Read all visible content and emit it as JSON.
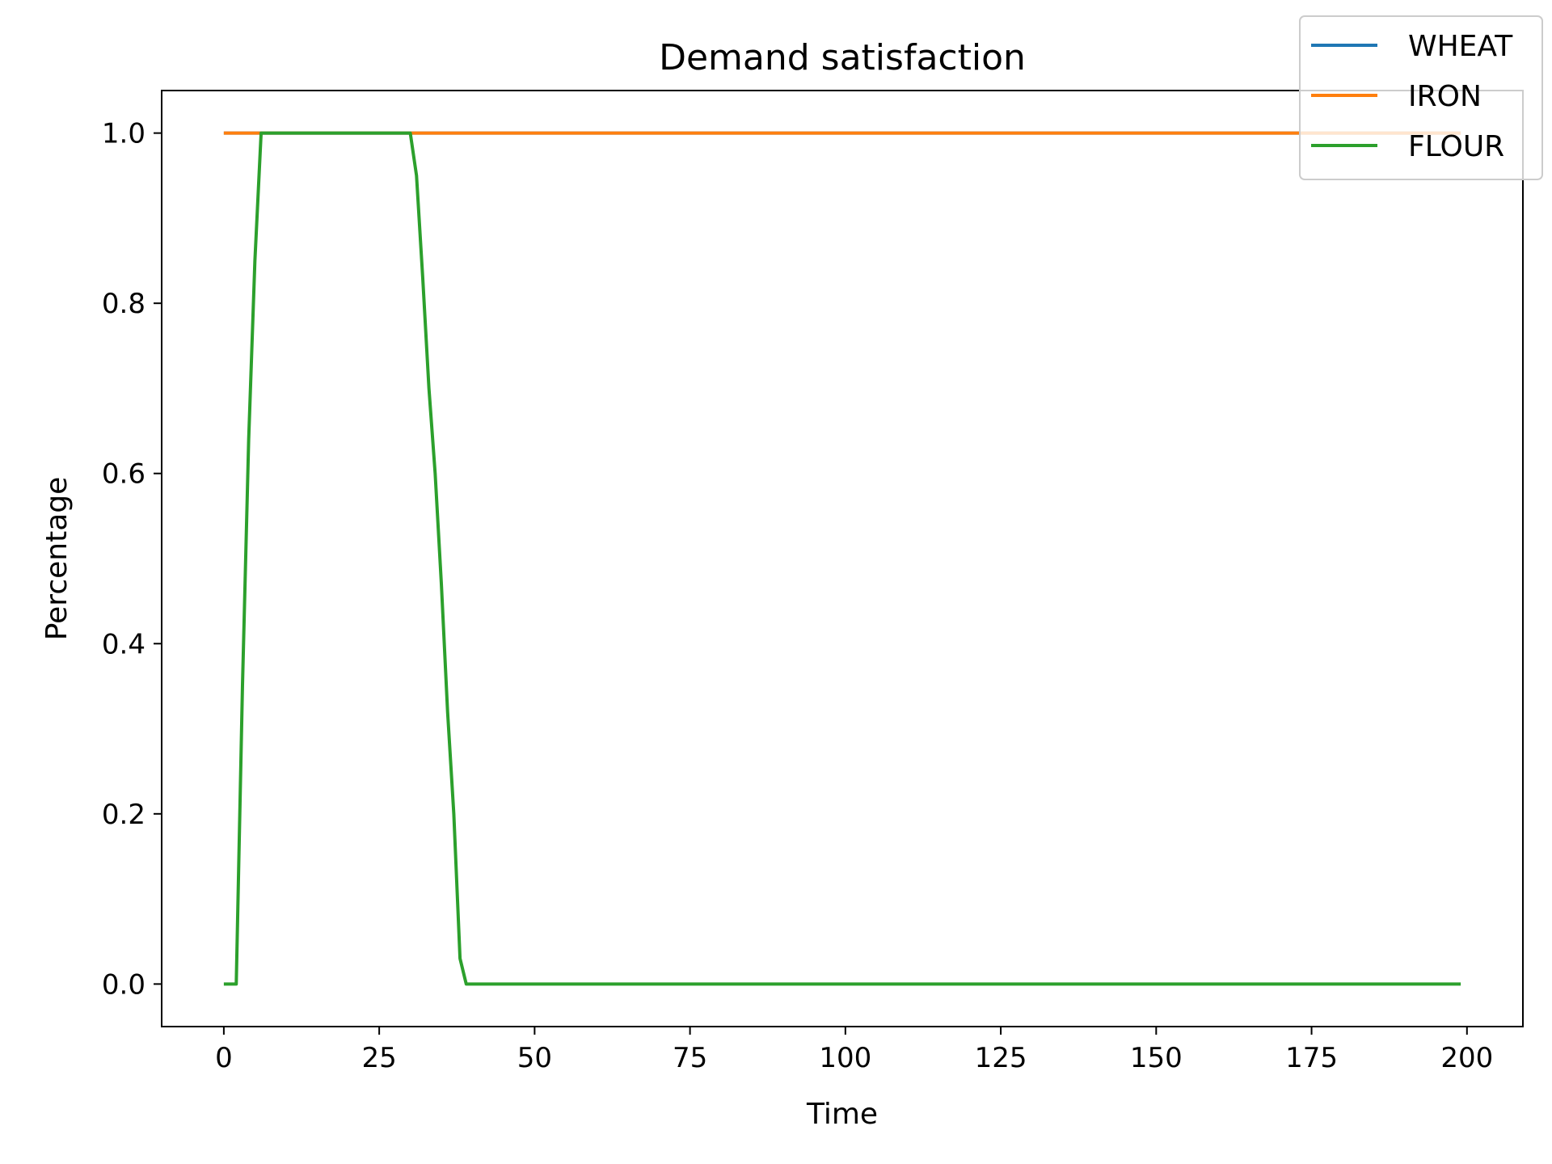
{
  "chart_data": {
    "type": "line",
    "title": "Demand satisfaction",
    "xlabel": "Time",
    "ylabel": "Percentage",
    "xlim": [
      -10,
      209
    ],
    "ylim": [
      -0.05,
      1.05
    ],
    "xticks": [
      0,
      25,
      50,
      75,
      100,
      125,
      150,
      175,
      200
    ],
    "yticks": [
      0.0,
      0.2,
      0.4,
      0.6,
      0.8,
      1.0
    ],
    "xtick_labels": [
      "0",
      "25",
      "50",
      "75",
      "100",
      "125",
      "150",
      "175",
      "200"
    ],
    "ytick_labels": [
      "0.0",
      "0.2",
      "0.4",
      "0.6",
      "0.8",
      "1.0"
    ],
    "grid": false,
    "legend_position": "top-right",
    "series": [
      {
        "name": "WHEAT",
        "color": "#1f77b4",
        "x": [
          0,
          199
        ],
        "y": [
          1.0,
          1.0
        ]
      },
      {
        "name": "IRON",
        "color": "#ff7f0e",
        "x": [
          0,
          199
        ],
        "y": [
          1.0,
          1.0
        ]
      },
      {
        "name": "FLOUR",
        "color": "#2ca02c",
        "x": [
          0,
          1,
          2,
          3,
          4,
          5,
          6,
          7,
          8,
          29,
          30,
          31,
          32,
          33,
          34,
          35,
          36,
          37,
          38,
          39,
          40,
          199
        ],
        "y": [
          0.0,
          0.0,
          0.0,
          0.35,
          0.64,
          0.85,
          1.0,
          1.0,
          1.0,
          1.0,
          1.0,
          0.95,
          0.83,
          0.7,
          0.6,
          0.47,
          0.32,
          0.2,
          0.03,
          0.0,
          0.0,
          0.0
        ]
      }
    ]
  }
}
